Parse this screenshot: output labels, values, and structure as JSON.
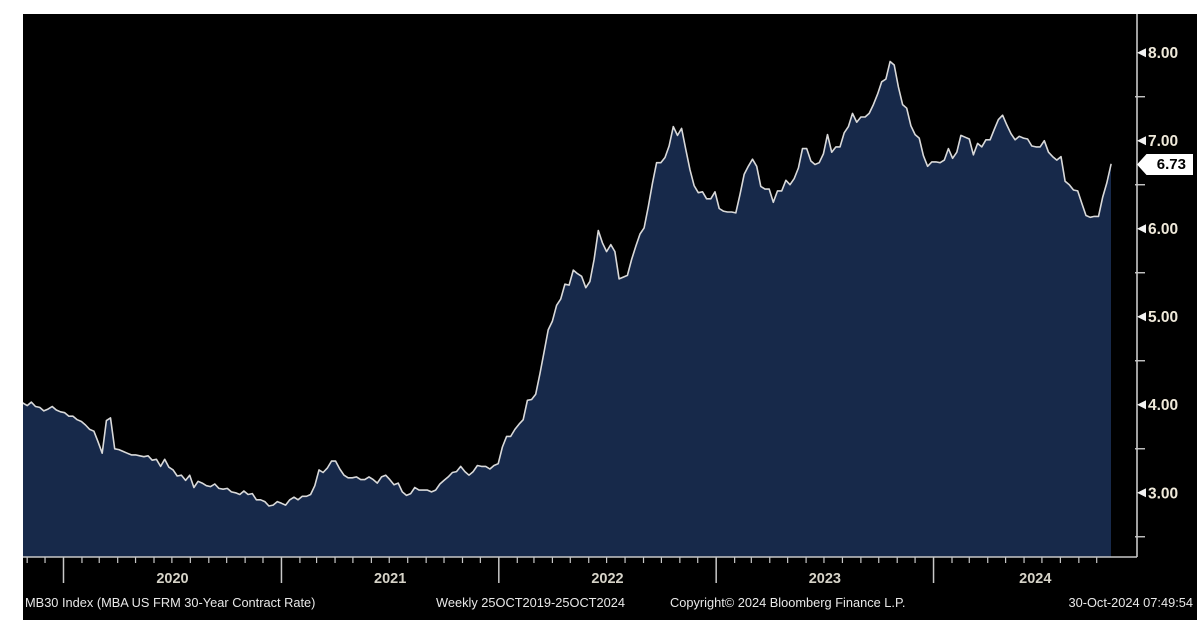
{
  "colors": {
    "page_bg": "#ffffff",
    "panel_bg": "#000000",
    "area_fill": "#17294a",
    "line": "#d9d9d9",
    "axis": "#c8c8c8",
    "y_label": "#efe9da",
    "x_label": "#d6d3c8",
    "footer_text": "#e8e8e8",
    "badge_bg": "#ffffff",
    "badge_text": "#000000"
  },
  "footer": {
    "series_label": "MB30 Index (MBA US FRM 30-Year Contract Rate)",
    "range_label": "Weekly 25OCT2019-25OCT2024",
    "copyright": "Copyright© 2024 Bloomberg Finance L.P.",
    "timestamp": "30-Oct-2024 07:49:54"
  },
  "chart_data": {
    "type": "area",
    "title": "MB30 Index (MBA US FRM 30-Year Contract Rate)",
    "frequency": "Weekly",
    "x_start": "2019-10-25",
    "x_end": "2024-10-25",
    "ylim": [
      2.27,
      8.44
    ],
    "grid": false,
    "legend": "none",
    "last_value": 6.73,
    "last_label": "6.73",
    "y_axis": {
      "side": "right",
      "major": [
        {
          "value": 3,
          "label": "3.00"
        },
        {
          "value": 4,
          "label": "4.00"
        },
        {
          "value": 5,
          "label": "5.00"
        },
        {
          "value": 6,
          "label": "6.00"
        },
        {
          "value": 7,
          "label": "7.00"
        },
        {
          "value": 8,
          "label": "8.00"
        }
      ],
      "minor": [
        2.5,
        3.5,
        4.5,
        5.5,
        6.5,
        7.5
      ]
    },
    "x_axis": {
      "minor_tick_interval": "month",
      "year_labels": [
        {
          "year": 2020,
          "label": "2020"
        },
        {
          "year": 2021,
          "label": "2021"
        },
        {
          "year": 2022,
          "label": "2022"
        },
        {
          "year": 2023,
          "label": "2023"
        },
        {
          "year": 2024,
          "label": "2024"
        }
      ]
    },
    "values": [
      4.02,
      3.99,
      4.03,
      3.98,
      3.97,
      3.93,
      3.95,
      3.98,
      3.94,
      3.92,
      3.91,
      3.87,
      3.87,
      3.83,
      3.81,
      3.77,
      3.72,
      3.7,
      3.58,
      3.45,
      3.82,
      3.85,
      3.5,
      3.49,
      3.47,
      3.45,
      3.43,
      3.43,
      3.42,
      3.41,
      3.42,
      3.37,
      3.38,
      3.3,
      3.38,
      3.29,
      3.26,
      3.19,
      3.2,
      3.14,
      3.2,
      3.06,
      3.13,
      3.11,
      3.08,
      3.07,
      3.1,
      3.05,
      3.04,
      3.05,
      3.01,
      3.0,
      2.98,
      3.02,
      2.98,
      2.99,
      2.92,
      2.92,
      2.9,
      2.85,
      2.86,
      2.9,
      2.88,
      2.86,
      2.92,
      2.95,
      2.92,
      2.96,
      2.96,
      2.98,
      3.08,
      3.26,
      3.23,
      3.28,
      3.36,
      3.36,
      3.27,
      3.2,
      3.17,
      3.17,
      3.18,
      3.15,
      3.15,
      3.18,
      3.15,
      3.11,
      3.18,
      3.2,
      3.15,
      3.09,
      3.11,
      3.01,
      2.97,
      2.99,
      3.06,
      3.03,
      3.03,
      3.03,
      3.01,
      3.03,
      3.1,
      3.14,
      3.18,
      3.23,
      3.24,
      3.3,
      3.24,
      3.2,
      3.24,
      3.31,
      3.3,
      3.3,
      3.27,
      3.31,
      3.33,
      3.52,
      3.64,
      3.64,
      3.72,
      3.78,
      3.83,
      4.05,
      4.06,
      4.12,
      4.35,
      4.6,
      4.85,
      4.95,
      5.13,
      5.2,
      5.37,
      5.36,
      5.53,
      5.49,
      5.46,
      5.33,
      5.4,
      5.65,
      5.98,
      5.84,
      5.74,
      5.82,
      5.74,
      5.43,
      5.45,
      5.47,
      5.65,
      5.8,
      5.94,
      6.01,
      6.25,
      6.52,
      6.75,
      6.75,
      6.81,
      6.94,
      7.16,
      7.06,
      7.14,
      6.9,
      6.67,
      6.49,
      6.41,
      6.42,
      6.34,
      6.34,
      6.42,
      6.23,
      6.2,
      6.19,
      6.19,
      6.18,
      6.39,
      6.62,
      6.71,
      6.79,
      6.71,
      6.48,
      6.45,
      6.45,
      6.3,
      6.43,
      6.43,
      6.55,
      6.5,
      6.57,
      6.69,
      6.91,
      6.91,
      6.77,
      6.73,
      6.75,
      6.85,
      7.07,
      6.87,
      6.93,
      6.93,
      7.09,
      7.16,
      7.31,
      7.21,
      7.27,
      7.27,
      7.31,
      7.41,
      7.53,
      7.67,
      7.7,
      7.9,
      7.86,
      7.61,
      7.41,
      7.37,
      7.17,
      7.07,
      7.03,
      6.83,
      6.71,
      6.76,
      6.76,
      6.75,
      6.78,
      6.91,
      6.8,
      6.87,
      7.06,
      7.04,
      7.02,
      6.84,
      6.97,
      6.93,
      7.01,
      7.01,
      7.13,
      7.24,
      7.29,
      7.18,
      7.08,
      7.01,
      7.05,
      7.03,
      7.02,
      6.94,
      6.93,
      6.93,
      7.0,
      6.87,
      6.82,
      6.78,
      6.82,
      6.54,
      6.5,
      6.44,
      6.43,
      6.29,
      6.15,
      6.13,
      6.14,
      6.14,
      6.36,
      6.52,
      6.73
    ]
  }
}
